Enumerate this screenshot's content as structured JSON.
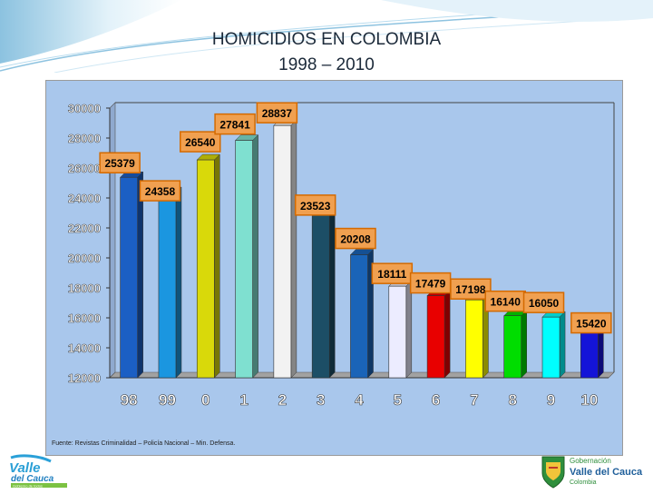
{
  "title_line1": "HOMICIDIOS EN COLOMBIA",
  "title_line2": "1998 – 2010",
  "source": "Fuente: Revistas Criminalidad – Policía Nacional – Min. Defensa.",
  "logo_left": {
    "line1": "Valle",
    "line2": "del Cauca",
    "tagline": "Gobierno de todos"
  },
  "logo_right": {
    "line1": "Gobernación",
    "line2": "Valle del Cauca",
    "line3": "Colombia"
  },
  "chart_data": {
    "type": "bar",
    "title": "",
    "xlabel": "",
    "ylabel": "",
    "categories": [
      "98",
      "99",
      "0",
      "1",
      "2",
      "3",
      "4",
      "5",
      "6",
      "7",
      "8",
      "9",
      "10"
    ],
    "values": [
      25379,
      24358,
      26540,
      27841,
      28837,
      23523,
      20208,
      18111,
      17479,
      17198,
      16140,
      16050,
      15420
    ],
    "bar_colors": [
      "#1b5fc4",
      "#1b96e0",
      "#d9d90a",
      "#7fe0d0",
      "#f2f2f2",
      "#1c4e66",
      "#1a64b8",
      "#ececff",
      "#e80000",
      "#ffff00",
      "#00dd00",
      "#00ffff",
      "#1414d8"
    ],
    "yticks": [
      "30000",
      "28000",
      "26000",
      "24000",
      "22000",
      "20000",
      "18000",
      "16000",
      "14000",
      "12000"
    ],
    "ylim": [
      12000,
      30000
    ],
    "grid": false,
    "legend": "none",
    "label_box_color": "#f0a050",
    "plot_background": "#a9c7ec"
  }
}
